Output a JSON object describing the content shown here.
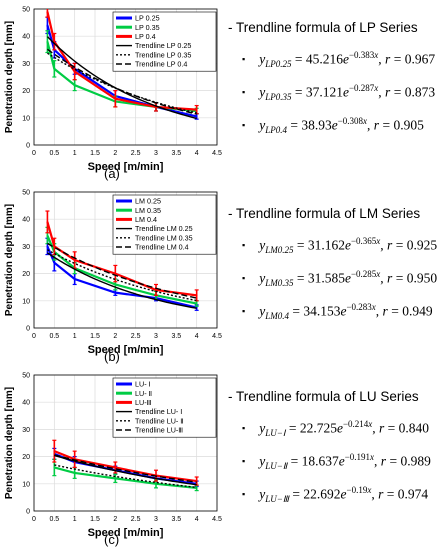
{
  "chart_data": [
    {
      "type": "line",
      "id": "LP",
      "caption": "(a)",
      "xlabel": "Speed [m/min]",
      "ylabel": "Penetration depth [mm]",
      "xlim": [
        0,
        4.5
      ],
      "ylim": [
        0,
        50
      ],
      "xticks": [
        0,
        0.5,
        1,
        1.5,
        2,
        2.5,
        3,
        3.5,
        4,
        4.5
      ],
      "xtick_labels": [
        "0",
        "0.5",
        "1",
        "1.5",
        "2",
        "2.5",
        "3",
        "3.5",
        "4",
        "4.5"
      ],
      "yticks": [
        0,
        10,
        20,
        30,
        40,
        50
      ],
      "grid": true,
      "legend_position": "top-right",
      "x": [
        0.33,
        0.5,
        1,
        2,
        3,
        4
      ],
      "series": [
        {
          "name": "LP 0.25",
          "color": "#0000ff",
          "values": [
            44,
            35,
            28,
            18,
            14,
            10.5
          ],
          "err": [
            3,
            3,
            2,
            2,
            1.5,
            1
          ]
        },
        {
          "name": "LP 0.35",
          "color": "#00cc44",
          "values": [
            38,
            28,
            22,
            16,
            14,
            12.5
          ],
          "err": [
            4,
            3,
            2,
            2,
            1.5,
            1
          ]
        },
        {
          "name": "LP 0.4",
          "color": "#ff0000",
          "values": [
            49,
            38,
            27,
            17,
            14,
            13
          ],
          "err": [
            2,
            3,
            3,
            3,
            1.5,
            1.5
          ]
        }
      ],
      "trendlines": [
        {
          "name": "Trendline LP 0.25",
          "dash": "",
          "a": 45.216,
          "b": -0.383
        },
        {
          "name": "Trendline LP 0.35",
          "dash": "2,2",
          "a": 37.121,
          "b": -0.287
        },
        {
          "name": "Trendline LP 0.4",
          "dash": "6,3",
          "a": 38.93,
          "b": -0.308
        }
      ]
    },
    {
      "type": "line",
      "id": "LM",
      "caption": "(b)",
      "xlabel": "Speed [m/min]",
      "ylabel": "Penetration depth [mm]",
      "xlim": [
        0,
        4.5
      ],
      "ylim": [
        0,
        50
      ],
      "xticks": [
        0,
        0.5,
        1,
        1.5,
        2,
        2.5,
        3,
        3.5,
        4,
        4.5
      ],
      "xtick_labels": [
        "0",
        "0.5",
        "1",
        "1.5",
        "2",
        "2.5",
        "3",
        "3.5",
        "4",
        "4.5"
      ],
      "yticks": [
        0,
        10,
        20,
        30,
        40,
        50
      ],
      "grid": true,
      "legend_position": "top-right",
      "x": [
        0.33,
        0.5,
        1,
        2,
        3,
        4
      ],
      "series": [
        {
          "name": "LM 0.25",
          "color": "#0000ff",
          "values": [
            30,
            24,
            18,
            13,
            11,
            7.5
          ],
          "err": [
            3,
            3,
            2,
            1,
            1,
            1
          ]
        },
        {
          "name": "LM 0.35",
          "color": "#00cc44",
          "values": [
            34,
            28,
            22,
            16,
            12,
            9
          ],
          "err": [
            3,
            3,
            2,
            2,
            1.5,
            1
          ]
        },
        {
          "name": "LM 0.4",
          "color": "#ff0000",
          "values": [
            39,
            30,
            25,
            20,
            14,
            12
          ],
          "err": [
            4,
            3,
            3,
            3,
            2,
            2
          ]
        }
      ],
      "trendlines": [
        {
          "name": "Trendline LM 0.25",
          "dash": "",
          "a": 31.162,
          "b": -0.365
        },
        {
          "name": "Trendline LM 0.35",
          "dash": "2,2",
          "a": 31.585,
          "b": -0.285
        },
        {
          "name": "Trendline LM 0.4",
          "dash": "6,3",
          "a": 34.153,
          "b": -0.283
        }
      ]
    },
    {
      "type": "line",
      "id": "LU",
      "caption": "(c)",
      "xlabel": "Speed [m/min]",
      "ylabel": "Penetration depth [mm]",
      "xlim": [
        0,
        4.5
      ],
      "ylim": [
        0,
        50
      ],
      "xticks": [
        0,
        0.5,
        1,
        1.5,
        2,
        2.5,
        3,
        3.5,
        4,
        4.5
      ],
      "xtick_labels": [
        "0",
        "0.5",
        "1",
        "1.5",
        "2",
        "2.5",
        "3",
        "3.5",
        "4",
        "4.5"
      ],
      "yticks": [
        0,
        10,
        20,
        30,
        40,
        50
      ],
      "grid": true,
      "legend_position": "top-right",
      "x": [
        0.5,
        1,
        2,
        3,
        4
      ],
      "series": [
        {
          "name": "LU- Ⅰ",
          "color": "#0000ff",
          "values": [
            21,
            18,
            15,
            12,
            10
          ],
          "err": [
            2,
            2,
            1.5,
            1,
            1
          ]
        },
        {
          "name": "LU- Ⅱ",
          "color": "#00cc44",
          "values": [
            16,
            14,
            12,
            10,
            8.5
          ],
          "err": [
            3,
            2,
            1.5,
            1.5,
            1
          ]
        },
        {
          "name": "LU-Ⅲ",
          "color": "#ff0000",
          "values": [
            22,
            19,
            16,
            13,
            11
          ],
          "err": [
            4,
            3,
            2,
            2,
            1.5
          ]
        }
      ],
      "trendlines": [
        {
          "name": "Trendline LU- Ⅰ",
          "dash": "",
          "a": 22.725,
          "b": -0.214
        },
        {
          "name": "Trendline LU- Ⅱ",
          "dash": "2,2",
          "a": 18.637,
          "b": -0.191
        },
        {
          "name": "Trendline LU-Ⅲ",
          "dash": "6,3",
          "a": 22.692,
          "b": -0.19
        }
      ]
    }
  ],
  "formulas": [
    {
      "heading": "- Trendline formula of LP Series",
      "rows": [
        {
          "subscript": "LP0.25",
          "a": "45.216",
          "b": "−0.383",
          "r": "0.967"
        },
        {
          "subscript": "LP0.35",
          "a": "37.121",
          "b": "−0.287",
          "r": "0.873"
        },
        {
          "subscript": "LP0.4",
          "a": "38.93",
          "b": "−0.308",
          "r": "0.905"
        }
      ]
    },
    {
      "heading": "- Trendline formula of LM Series",
      "rows": [
        {
          "subscript": "LM0.25",
          "a": "31.162",
          "b": "−0.365",
          "r": "0.925"
        },
        {
          "subscript": "LM0.35",
          "a": "31.585",
          "b": "−0.285",
          "r": "0.950"
        },
        {
          "subscript": "LM0.4",
          "a": "34.153",
          "b": "−0.283",
          "r": "0.949"
        }
      ]
    },
    {
      "heading": "- Trendline formula of LU Series",
      "rows": [
        {
          "subscript": "LU−Ⅰ",
          "a": "22.725",
          "b": "−0.214",
          "r": "0.840"
        },
        {
          "subscript": "LU−Ⅱ",
          "a": "18.637",
          "b": "−0.191",
          "r": "0.989"
        },
        {
          "subscript": "LU−Ⅲ",
          "a": "22.692",
          "b": "−0.19",
          "r": "0.974"
        }
      ]
    }
  ],
  "bullet": "▪"
}
